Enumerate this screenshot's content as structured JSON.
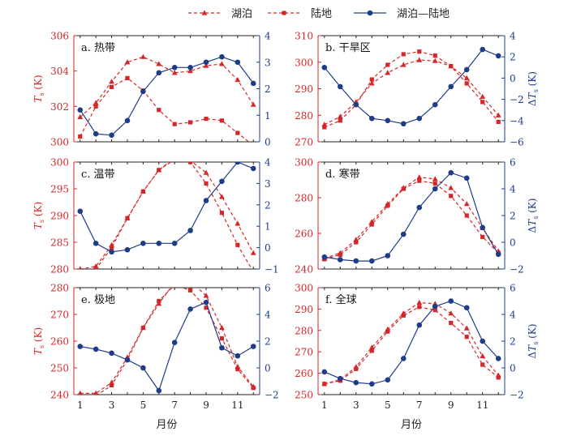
{
  "legend": {
    "items": [
      {
        "label": "湖泊",
        "style": "triangle-dash",
        "color": "#d62728"
      },
      {
        "label": "陆地",
        "style": "square-dash",
        "color": "#d62728"
      },
      {
        "label": "湖泊—陆地",
        "style": "circle-solid",
        "color": "#1f3c88"
      }
    ]
  },
  "colors": {
    "red": "#d62728",
    "blue": "#1f3c88"
  },
  "chart_data": [
    {
      "type": "line",
      "label": "a. 热带",
      "x": [
        1,
        2,
        3,
        4,
        5,
        6,
        7,
        8,
        9,
        10,
        11,
        12
      ],
      "ylabel_left": "T_s (K)",
      "ylim_left": [
        300,
        306
      ],
      "yticks_left": [
        300,
        302,
        304,
        306
      ],
      "ylabel_right": "",
      "ylim_right": [
        0,
        4
      ],
      "yticks_right": [
        0,
        1,
        2,
        3,
        4
      ],
      "xlabel": "",
      "xticks": [],
      "series": [
        {
          "name": "湖泊",
          "axis": "left",
          "values": [
            301.4,
            302.2,
            303.4,
            304.5,
            304.8,
            304.4,
            303.9,
            304.0,
            304.3,
            304.4,
            303.5,
            302.1
          ]
        },
        {
          "name": "陆地",
          "axis": "left",
          "values": [
            300.3,
            302.0,
            303.1,
            303.6,
            302.9,
            301.8,
            301.0,
            301.1,
            301.3,
            301.2,
            300.5,
            299.8
          ]
        },
        {
          "name": "湖泊—陆地",
          "axis": "right",
          "values": [
            1.2,
            0.3,
            0.25,
            0.8,
            1.9,
            2.6,
            2.8,
            2.8,
            3.0,
            3.2,
            3.0,
            2.2
          ]
        }
      ]
    },
    {
      "type": "line",
      "label": "b. 干旱区",
      "x": [
        1,
        2,
        3,
        4,
        5,
        6,
        7,
        8,
        9,
        10,
        11,
        12
      ],
      "ylabel_left": "",
      "ylim_left": [
        270,
        310
      ],
      "yticks_left": [
        270,
        280,
        290,
        300,
        310
      ],
      "ylabel_right": "ΔT_s (K)",
      "ylim_right": [
        -6,
        4
      ],
      "yticks_right": [
        -6,
        -4,
        -2,
        0,
        2,
        4
      ],
      "xlabel": "",
      "xticks": [],
      "series": [
        {
          "name": "湖泊",
          "axis": "left",
          "values": [
            276.5,
            279.5,
            285.0,
            292.0,
            296.0,
            299.0,
            300.8,
            300.5,
            298.5,
            294.0,
            287.0,
            280.0
          ]
        },
        {
          "name": "陆地",
          "axis": "left",
          "values": [
            275.5,
            278.0,
            284.0,
            293.5,
            299.0,
            303.0,
            304.0,
            302.5,
            298.5,
            292.0,
            285.0,
            277.5
          ]
        },
        {
          "name": "湖泊—陆地",
          "axis": "right",
          "values": [
            1.0,
            -0.8,
            -2.5,
            -3.8,
            -4.0,
            -4.3,
            -3.8,
            -2.5,
            -0.8,
            0.8,
            2.7,
            2.1
          ]
        }
      ]
    },
    {
      "type": "line",
      "label": "c. 温带",
      "x": [
        1,
        2,
        3,
        4,
        5,
        6,
        7,
        8,
        9,
        10,
        11,
        12
      ],
      "ylabel_left": "T_s (K)",
      "ylim_left": [
        280,
        300
      ],
      "yticks_left": [
        280,
        285,
        290,
        295,
        300
      ],
      "ylabel_right": "",
      "ylim_right": [
        -1,
        4
      ],
      "yticks_right": [
        -1,
        0,
        1,
        2,
        3,
        4
      ],
      "xlabel": "",
      "xticks": [],
      "series": [
        {
          "name": "湖泊",
          "axis": "left",
          "values": [
            280.0,
            280.5,
            284.5,
            289.5,
            294.5,
            298.5,
            300.5,
            300.3,
            298.0,
            293.5,
            288.5,
            283.0
          ]
        },
        {
          "name": "陆地",
          "axis": "left",
          "values": [
            278.5,
            280.0,
            284.0,
            289.5,
            294.5,
            298.5,
            300.8,
            300.0,
            296.0,
            290.5,
            284.5,
            279.5
          ]
        },
        {
          "name": "湖泊—陆地",
          "axis": "right",
          "values": [
            1.7,
            0.2,
            -0.2,
            -0.1,
            0.2,
            0.2,
            0.2,
            0.8,
            2.2,
            3.1,
            4.0,
            3.7
          ]
        }
      ]
    },
    {
      "type": "line",
      "label": "d. 寒带",
      "x": [
        1,
        2,
        3,
        4,
        5,
        6,
        7,
        8,
        9,
        10,
        11,
        12
      ],
      "ylabel_left": "",
      "ylim_left": [
        240,
        300
      ],
      "yticks_left": [
        240,
        260,
        280,
        300
      ],
      "ylabel_right": "ΔT_s (K)",
      "ylim_right": [
        -2,
        6
      ],
      "yticks_right": [
        -2,
        0,
        2,
        4,
        6
      ],
      "xlabel": "",
      "xticks": [],
      "series": [
        {
          "name": "湖泊",
          "axis": "left",
          "values": [
            246.0,
            249.0,
            256.5,
            266.5,
            276.5,
            285.5,
            291.5,
            290.5,
            285.5,
            276.5,
            263.0,
            250.0
          ]
        },
        {
          "name": "陆地",
          "axis": "left",
          "values": [
            245.5,
            248.0,
            255.0,
            265.0,
            275.5,
            285.0,
            289.5,
            288.0,
            281.0,
            270.0,
            258.0,
            249.0
          ]
        },
        {
          "name": "湖泊—陆地",
          "axis": "right",
          "values": [
            -1.1,
            -1.3,
            -1.4,
            -1.4,
            -1.0,
            0.6,
            2.6,
            4.0,
            5.2,
            4.8,
            1.1,
            -0.9
          ]
        }
      ]
    },
    {
      "type": "line",
      "label": "e. 极地",
      "x": [
        1,
        2,
        3,
        4,
        5,
        6,
        7,
        8,
        9,
        10,
        11,
        12
      ],
      "ylabel_left": "T_s (K)",
      "ylim_left": [
        240,
        280
      ],
      "yticks_left": [
        240,
        250,
        260,
        270,
        280
      ],
      "ylabel_right": "",
      "ylim_right": [
        -2,
        6
      ],
      "yticks_right": [
        -2,
        0,
        2,
        4,
        6
      ],
      "xlabel": "月份",
      "xticks": [
        1,
        3,
        5,
        7,
        9,
        11
      ],
      "series": [
        {
          "name": "湖泊",
          "axis": "left",
          "values": [
            240.5,
            240.5,
            244.5,
            254.0,
            265.0,
            274.0,
            282.0,
            282.5,
            277.0,
            265.0,
            250.5,
            243.0
          ]
        },
        {
          "name": "陆地",
          "axis": "left",
          "values": [
            237.5,
            239.5,
            243.5,
            253.0,
            265.0,
            275.0,
            281.0,
            279.0,
            272.5,
            261.0,
            249.5,
            242.5
          ]
        },
        {
          "name": "湖泊—陆地",
          "axis": "right",
          "values": [
            1.6,
            1.4,
            1.1,
            0.6,
            0.0,
            -1.7,
            1.9,
            4.4,
            4.9,
            1.5,
            0.9,
            1.6
          ]
        }
      ]
    },
    {
      "type": "line",
      "label": "f. 全球",
      "x": [
        1,
        2,
        3,
        4,
        5,
        6,
        7,
        8,
        9,
        10,
        11,
        12
      ],
      "ylabel_left": "",
      "ylim_left": [
        250,
        300
      ],
      "yticks_left": [
        250,
        260,
        270,
        280,
        290,
        300
      ],
      "ylabel_right": "ΔT_s (K)",
      "ylim_right": [
        -2,
        6
      ],
      "yticks_right": [
        -2,
        0,
        2,
        4,
        6
      ],
      "xlabel": "月份",
      "xticks": [
        1,
        3,
        5,
        7,
        9,
        11
      ],
      "series": [
        {
          "name": "湖泊",
          "axis": "left",
          "values": [
            255.0,
            257.0,
            263.0,
            272.0,
            280.5,
            288.0,
            293.0,
            292.5,
            288.0,
            281.0,
            268.0,
            259.0
          ]
        },
        {
          "name": "陆地",
          "axis": "left",
          "values": [
            255.0,
            256.5,
            262.0,
            270.5,
            279.5,
            287.0,
            291.0,
            289.5,
            283.5,
            277.0,
            264.0,
            258.0
          ]
        },
        {
          "name": "湖泊—陆地",
          "axis": "right",
          "values": [
            -0.3,
            -0.8,
            -1.1,
            -1.2,
            -0.9,
            0.7,
            3.2,
            4.6,
            5.0,
            4.5,
            2.0,
            0.7
          ]
        }
      ]
    }
  ]
}
